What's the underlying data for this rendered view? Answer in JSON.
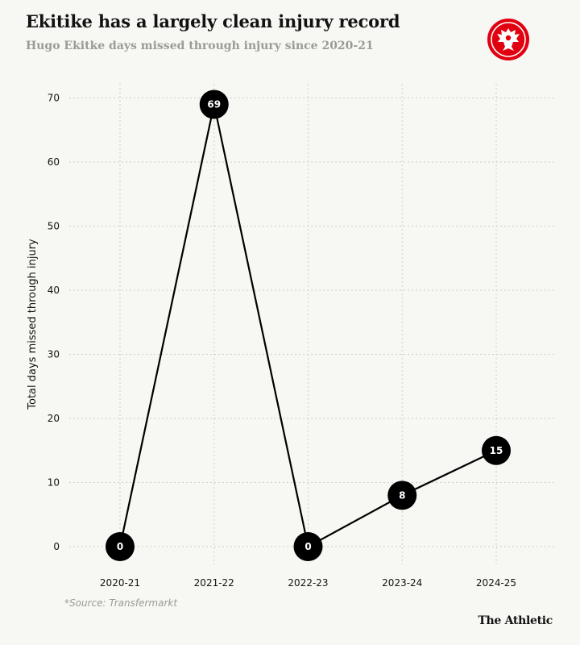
{
  "header": {
    "title": "Ekitike has a largely clean injury record",
    "subtitle": "Hugo Ekitke days missed through injury since 2020-21"
  },
  "logo": {
    "icon": "eagle-crest-icon",
    "color": "#e1000f"
  },
  "footer": {
    "source": "*Source: Transfermarkt",
    "brand": "The Athletic"
  },
  "chart_data": {
    "type": "line",
    "categories": [
      "2020-21",
      "2021-22",
      "2022-23",
      "2023-24",
      "2024-25"
    ],
    "values": [
      0,
      69,
      0,
      8,
      15
    ],
    "data_labels": [
      "0",
      "69",
      "0",
      "8",
      "15"
    ],
    "ylabel": "Total days missed through injury",
    "yticks": [
      0,
      10,
      20,
      30,
      40,
      50,
      60,
      70
    ],
    "ylim": [
      0,
      70
    ],
    "grid": true,
    "line_color": "#000000",
    "marker_color": "#000000",
    "label_color": "#ffffff"
  }
}
